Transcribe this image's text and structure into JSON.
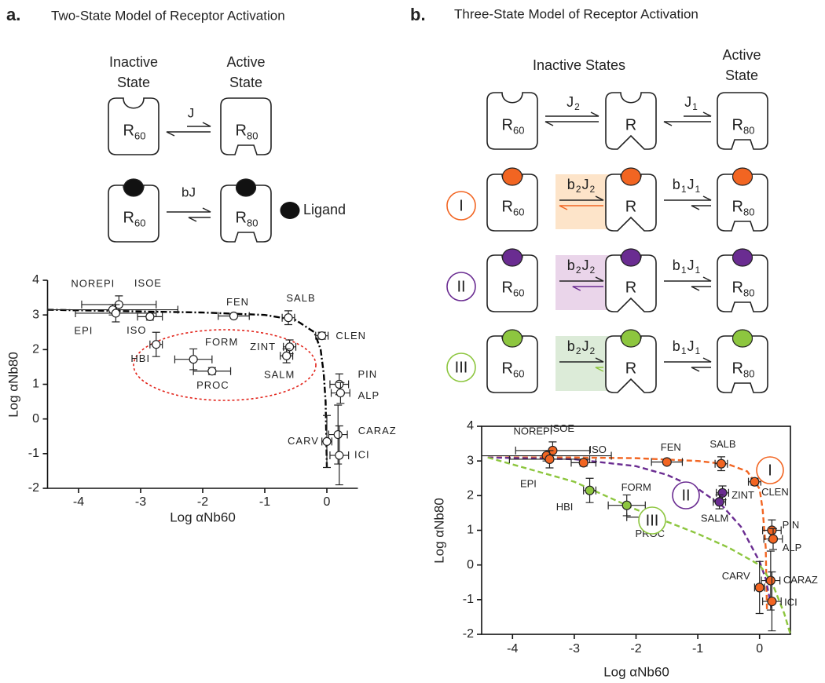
{
  "panel_a": {
    "label": "a.",
    "title": "Two-State Model of Receptor Activation",
    "inactive_label": [
      "Inactive",
      "State"
    ],
    "active_label": [
      "Active",
      "State"
    ],
    "receptor_inactive": {
      "base": "R",
      "sub": "60"
    },
    "receptor_active": {
      "base": "R",
      "sub": "80"
    },
    "constant": "J",
    "ligand_constant": "bJ",
    "ligand": "Ligand"
  },
  "panel_b": {
    "label": "b.",
    "title": "Three-State Model of Receptor Activation",
    "inactive_label": "Inactive States",
    "active_label": [
      "Active",
      "State"
    ],
    "receptor_inactive": {
      "base": "R",
      "sub": "60"
    },
    "receptor_intermediate": "R",
    "receptor_active": {
      "base": "R",
      "sub": "80"
    },
    "constant_2": [
      [
        "J",
        "2"
      ]
    ],
    "constant_1": [
      [
        "J",
        "1"
      ]
    ],
    "rows": [
      {
        "numeral": "I",
        "color": "#f26522",
        "tint": "#fde4c9",
        "rate_2": [
          [
            "b",
            "2"
          ],
          [
            "J",
            "2"
          ]
        ],
        "rate_1": [
          [
            "b",
            "1"
          ],
          [
            "J",
            "1"
          ]
        ]
      },
      {
        "numeral": "II",
        "color": "#6a2c91",
        "tint": "#ead5ea",
        "rate_2": [
          [
            "b",
            "2"
          ],
          [
            "J",
            "2"
          ]
        ],
        "rate_1": [
          [
            "b",
            "1"
          ],
          [
            "J",
            "1"
          ]
        ]
      },
      {
        "numeral": "III",
        "color": "#8dc63f",
        "tint": "#dcebd8",
        "rate_2": [
          [
            "b",
            "2"
          ],
          [
            "J",
            "2"
          ]
        ],
        "rate_1": [
          [
            "b",
            "1"
          ],
          [
            "J",
            "1"
          ]
        ]
      }
    ]
  },
  "chart_data": [
    {
      "type": "scatter",
      "x_label": "Log αNb60",
      "y_label": "Log αNb80",
      "xlim": [
        -4.5,
        0.5
      ],
      "ylim": [
        -2,
        4
      ],
      "xticks": [
        -4,
        -3,
        -2,
        -1,
        0
      ],
      "yticks": [
        -2,
        -1,
        0,
        1,
        2,
        3,
        4
      ],
      "marker": "open",
      "series": [
        {
          "color": "#000000",
          "labels": [
            "NOREPI",
            "ISOE",
            "EPI",
            "ISO",
            "FEN",
            "SALB",
            "CLEN",
            "PIN",
            "ALP",
            "CARAZ",
            "CARV",
            "ICI",
            "ZINT",
            "SALM",
            "HBI",
            "FORM",
            "PROC"
          ],
          "x": [
            -3.35,
            -3.45,
            -3.4,
            -2.85,
            -1.5,
            -0.62,
            -0.08,
            0.2,
            0.22,
            0.18,
            0,
            0.2,
            -0.6,
            -0.65,
            -2.75,
            -2.15,
            -1.85
          ],
          "values": [
            3.3,
            3.15,
            3.05,
            2.95,
            2.97,
            2.92,
            2.4,
            1.0,
            0.75,
            -0.45,
            -0.65,
            -1.05,
            2.08,
            1.82,
            2.15,
            1.72,
            1.38
          ],
          "xerr": [
            0.6,
            1.05,
            0.65,
            0.2,
            0.25,
            0.1,
            0.1,
            0.15,
            0.15,
            0.15,
            0.08,
            0.15,
            0.1,
            0.1,
            0.1,
            0.3,
            0.3
          ],
          "yerr": [
            0.25,
            0.15,
            0.25,
            0.1,
            0.05,
            0.2,
            0.1,
            0.3,
            0.3,
            0.85,
            0.75,
            0.85,
            0.2,
            0.2,
            0.35,
            0.3,
            0.1
          ],
          "fit": {
            "x": [
              -4.5,
              -3,
              -2,
              -1,
              -0.5,
              -0.2,
              -0.1,
              -0.05,
              -0.02,
              0
            ],
            "values": [
              3.15,
              3.1,
              3.07,
              3.0,
              2.85,
              2.5,
              2.0,
              1.3,
              0.5,
              -1.4
            ]
          }
        }
      ]
    },
    {
      "type": "scatter",
      "x_label": "Log αNb60",
      "y_label": "Log αNb80",
      "xlim": [
        -4.5,
        0.5
      ],
      "ylim": [
        -2,
        4
      ],
      "xticks": [
        -4,
        -3,
        -2,
        -1,
        0
      ],
      "yticks": [
        -2,
        -1,
        0,
        1,
        2,
        3,
        4
      ],
      "marker": "filled",
      "series": [
        {
          "name": "I",
          "color": "#f26522",
          "labels": [
            "NOREPI",
            "ISOE",
            "EPI",
            "ISO",
            "FEN",
            "SALB",
            "CLEN",
            "PIN",
            "ALP",
            "CARAZ",
            "CARV",
            "ICI"
          ],
          "x": [
            -3.35,
            -3.45,
            -3.4,
            -2.85,
            -1.5,
            -0.62,
            -0.08,
            0.2,
            0.22,
            0.18,
            0,
            0.2
          ],
          "values": [
            3.3,
            3.15,
            3.05,
            2.95,
            2.97,
            2.92,
            2.4,
            1.0,
            0.75,
            -0.45,
            -0.65,
            -1.05
          ],
          "xerr": [
            0.6,
            1.05,
            0.65,
            0.2,
            0.25,
            0.1,
            0.1,
            0.15,
            0.15,
            0.15,
            0.08,
            0.15
          ],
          "yerr": [
            0.25,
            0.15,
            0.25,
            0.1,
            0.05,
            0.2,
            0.1,
            0.3,
            0.3,
            0.85,
            0.75,
            0.85
          ],
          "fit": {
            "x": [
              -4.4,
              -3,
              -2,
              -1,
              -0.5,
              -0.2,
              0,
              0.05,
              0.1,
              0.12
            ],
            "values": [
              3.1,
              3.1,
              3.08,
              3.0,
              2.9,
              2.7,
              2.2,
              1.6,
              0.5,
              -1.3
            ]
          }
        },
        {
          "name": "II",
          "color": "#6a2c91",
          "labels": [
            "ZINT",
            "SALM"
          ],
          "x": [
            -0.6,
            -0.65
          ],
          "values": [
            2.08,
            1.82
          ],
          "xerr": [
            0.1,
            0.1
          ],
          "yerr": [
            0.2,
            0.2
          ],
          "fit": {
            "x": [
              -4.4,
              -3,
              -2,
              -1.5,
              -1,
              -0.6,
              -0.3,
              0,
              0.1,
              0.2
            ],
            "values": [
              3.1,
              3.05,
              2.85,
              2.6,
              2.2,
              1.7,
              1.1,
              0.1,
              -0.4,
              -1.3
            ]
          }
        },
        {
          "name": "III",
          "color": "#8dc63f",
          "labels": [
            "HBI",
            "FORM",
            "PROC"
          ],
          "x": [
            -2.75,
            -2.15,
            -1.85
          ],
          "values": [
            2.15,
            1.72,
            1.38
          ],
          "xerr": [
            0.1,
            0.3,
            0.3
          ],
          "yerr": [
            0.35,
            0.3,
            0.1
          ],
          "fit": {
            "x": [
              -4.4,
              -3,
              -2,
              -1,
              -0.5,
              0,
              0.2,
              0.4,
              0.5
            ],
            "values": [
              3.1,
              2.4,
              1.6,
              0.9,
              0.5,
              0,
              -0.5,
              -1.4,
              -2.0
            ]
          }
        }
      ]
    }
  ]
}
